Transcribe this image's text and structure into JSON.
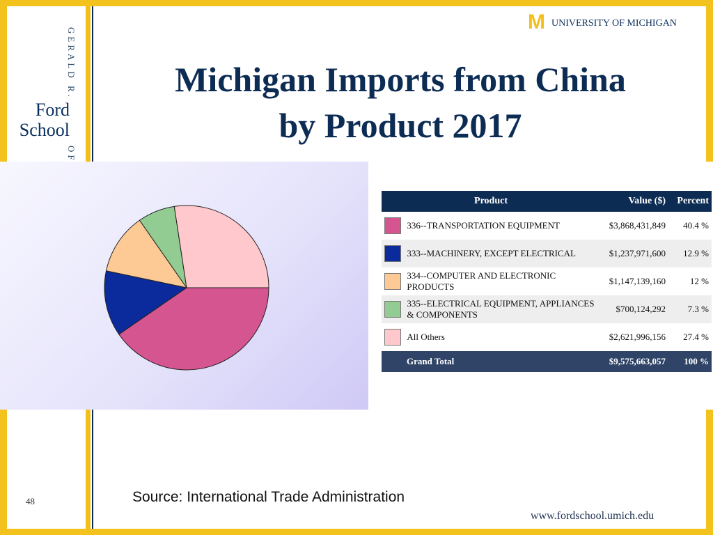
{
  "sidebar": {
    "name_top": "GERALD R.",
    "brand": [
      "Ford",
      "School"
    ],
    "name_bottom": "OF"
  },
  "header": {
    "logo_text": "UNIVERSITY OF MICHIGAN",
    "logo_m": "M"
  },
  "title": [
    "Michigan Imports from China",
    "by Product 2017"
  ],
  "table": {
    "headers": [
      "Product",
      "Value ($)",
      "Percent"
    ],
    "rows": [
      {
        "product": "336--TRANSPORTATION EQUIPMENT",
        "value": "$3,868,431,849",
        "percent": "40.4 %",
        "color": "#d45590"
      },
      {
        "product": "333--MACHINERY, EXCEPT ELECTRICAL",
        "value": "$1,237,971,600",
        "percent": "12.9 %",
        "color": "#0b2a9b"
      },
      {
        "product": "334--COMPUTER AND ELECTRONIC PRODUCTS",
        "value": "$1,147,139,160",
        "percent": "12 %",
        "color": "#fdc994"
      },
      {
        "product": "335--ELECTRICAL EQUIPMENT, APPLIANCES & COMPONENTS",
        "value": "$700,124,292",
        "percent": "7.3 %",
        "color": "#92cc92"
      },
      {
        "product": "All Others",
        "value": "$2,621,996,156",
        "percent": "27.4 %",
        "color": "#fec8cc"
      }
    ],
    "total": {
      "label": "Grand Total",
      "value": "$9,575,663,057",
      "percent": "100 %"
    }
  },
  "chart_data": {
    "type": "pie",
    "categories": [
      "336--TRANSPORTATION EQUIPMENT",
      "333--MACHINERY, EXCEPT ELECTRICAL",
      "334--COMPUTER AND ELECTRONIC PRODUCTS",
      "335--ELECTRICAL EQUIPMENT, APPLIANCES & COMPONENTS",
      "All Others"
    ],
    "values": [
      40.4,
      12.9,
      12,
      7.3,
      27.4
    ],
    "colors": [
      "#d45590",
      "#0b2a9b",
      "#fdc994",
      "#92cc92",
      "#fec8cc"
    ],
    "start": "3 o'clock",
    "direction": "clockwise"
  },
  "footer": {
    "source": "Source:  International Trade Administration",
    "page_number": "48",
    "url": "www.fordschool.umich.edu"
  }
}
